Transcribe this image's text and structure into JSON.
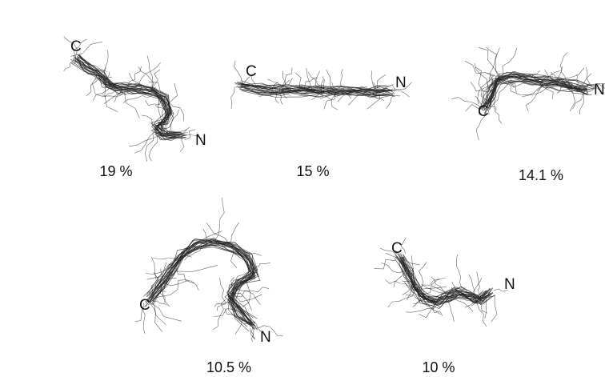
{
  "figure": {
    "line_color": "#222222",
    "background": "#ffffff",
    "clusters": [
      {
        "percent_label": "19 %",
        "c_label": "C",
        "n_label": "N"
      },
      {
        "percent_label": "15 %",
        "c_label": "C",
        "n_label": "N"
      },
      {
        "percent_label": "14.1 %",
        "c_label": "C",
        "n_label": "N"
      },
      {
        "percent_label": "10.5 %",
        "c_label": "C",
        "n_label": "N"
      },
      {
        "percent_label": "10 %",
        "c_label": "C",
        "n_label": "N"
      }
    ]
  }
}
